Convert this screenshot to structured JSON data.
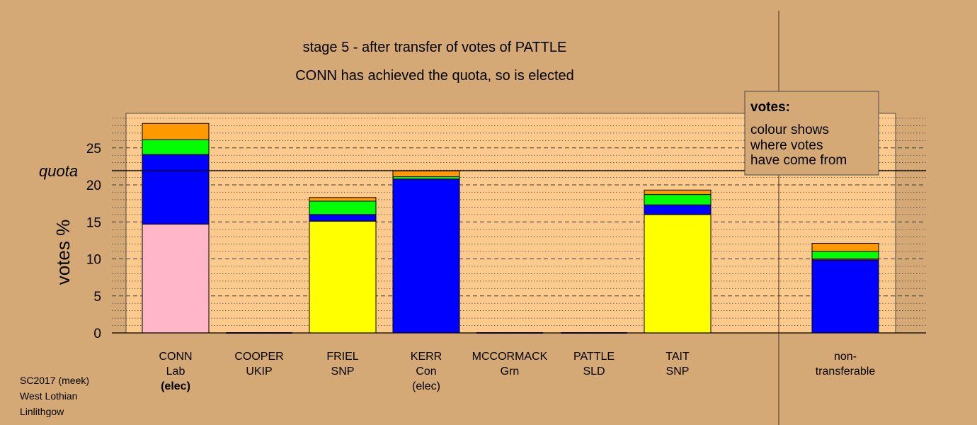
{
  "chart_data": {
    "type": "bar",
    "stacked": true,
    "title": "stage 5 - after transfer of votes of PATTLE",
    "subtitle": "CONN has achieved the quota, so is elected",
    "ylabel": "votes %",
    "ylim": [
      0,
      29.5
    ],
    "yticks": [
      0,
      5,
      10,
      15,
      20,
      25
    ],
    "quota": 22,
    "quota_label": "quota",
    "grid": "dashed horizontal lines every 5, dotted every 1",
    "categories": [
      {
        "name": "CONN",
        "party": "Lab",
        "status": "(elec)",
        "status_bold": true
      },
      {
        "name": "COOPER",
        "party": "UKIP",
        "status": ""
      },
      {
        "name": "FRIEL",
        "party": "SNP",
        "status": ""
      },
      {
        "name": "KERR",
        "party": "Con",
        "status": "(elec)",
        "status_bold": false
      },
      {
        "name": "MCCORMACK",
        "party": "Grn",
        "status": ""
      },
      {
        "name": "PATTLE",
        "party": "SLD",
        "status": ""
      },
      {
        "name": "TAIT",
        "party": "SNP",
        "status": ""
      }
    ],
    "nontransferable_label": [
      "non-",
      "transferable"
    ],
    "colors": {
      "Lab": "#ffb6c8",
      "Con": "#0000ff",
      "SNP": "#ffff00",
      "Grn": "#00ff00",
      "SLD": "#ff9900",
      "UKIP": "#800080"
    },
    "stacks": [
      [
        {
          "party": "Lab",
          "value": 14.7
        },
        {
          "party": "Con",
          "value": 9.4
        },
        {
          "party": "Grn",
          "value": 2.0
        },
        {
          "party": "SLD",
          "value": 2.2
        }
      ],
      [],
      [
        {
          "party": "SNP",
          "value": 15.1
        },
        {
          "party": "Con",
          "value": 0.9
        },
        {
          "party": "Grn",
          "value": 1.8
        },
        {
          "party": "SLD",
          "value": 0.5
        }
      ],
      [
        {
          "party": "Con",
          "value": 20.8
        },
        {
          "party": "Grn",
          "value": 0.3
        },
        {
          "party": "SLD",
          "value": 0.8
        }
      ],
      [],
      [],
      [
        {
          "party": "SNP",
          "value": 16.0
        },
        {
          "party": "Con",
          "value": 1.3
        },
        {
          "party": "Grn",
          "value": 1.4
        },
        {
          "party": "SLD",
          "value": 0.6
        }
      ]
    ],
    "nontransferable_stack": [
      {
        "party": "Con",
        "value": 9.8
      },
      {
        "party": "UKIP",
        "value": 0.2
      },
      {
        "party": "Grn",
        "value": 1.0
      },
      {
        "party": "SLD",
        "value": 1.1
      }
    ],
    "legend": {
      "placement": "top-right",
      "title": "votes:",
      "lines": [
        "colour shows",
        "where votes",
        "have come from"
      ]
    }
  },
  "footer": {
    "lines": [
      "SC2017 (meek)",
      "West Lothian",
      "Linlithgow"
    ]
  }
}
